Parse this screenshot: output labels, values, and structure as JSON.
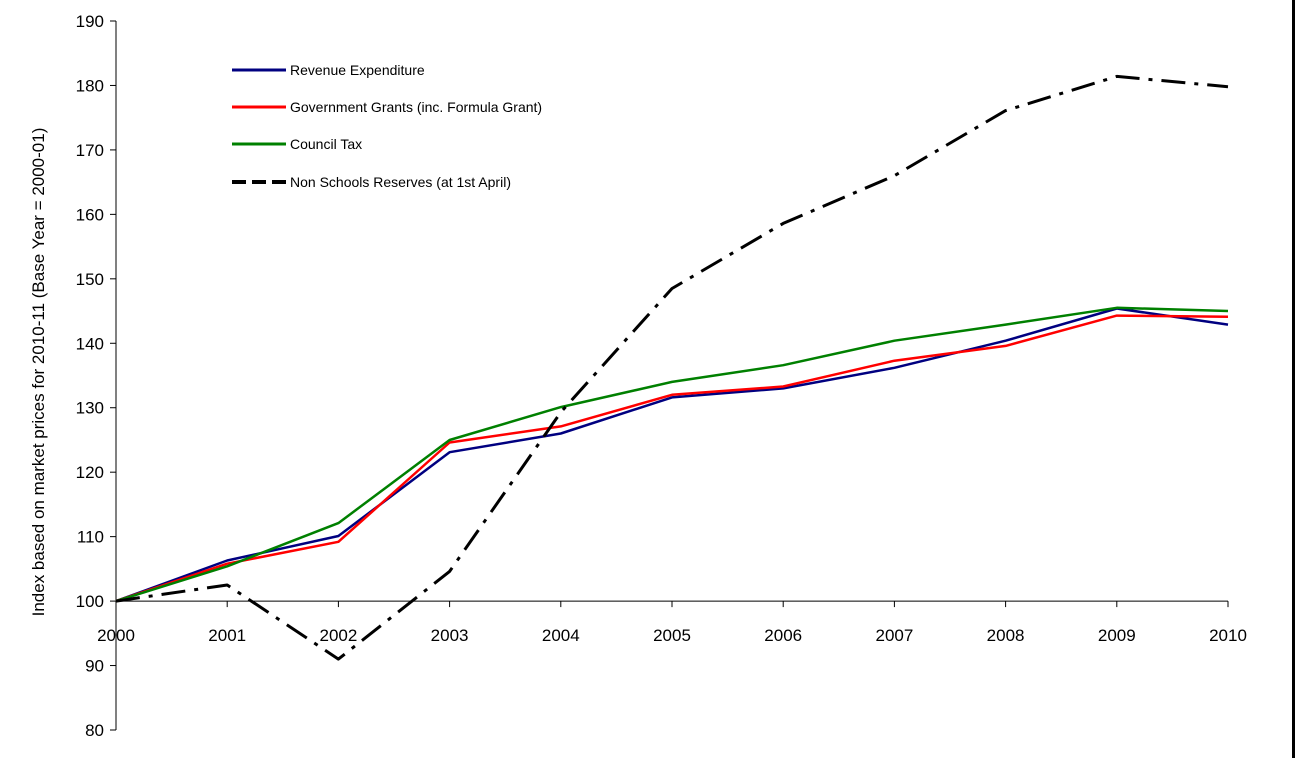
{
  "chart_data": {
    "type": "line",
    "title": "",
    "xlabel": "",
    "ylabel": "Index based on market prices for 2010-11 (Base Year = 2000-01)",
    "x": [
      2000,
      2001,
      2002,
      2003,
      2004,
      2005,
      2006,
      2007,
      2008,
      2009,
      2010
    ],
    "x_tick_labels": [
      "2000",
      "2001",
      "2002",
      "2003",
      "2004",
      "2005",
      "2006",
      "2007",
      "2008",
      "2009",
      "2010"
    ],
    "xlim": [
      2000,
      2010
    ],
    "ylim": [
      80,
      190
    ],
    "y_ticks": [
      80,
      90,
      100,
      110,
      120,
      130,
      140,
      150,
      160,
      170,
      180,
      190
    ],
    "y_tick_labels": [
      "80",
      "90",
      "100",
      "110",
      "120",
      "130",
      "140",
      "150",
      "160",
      "170",
      "180",
      "190"
    ],
    "x_axis_crosses_at": 100,
    "grid": false,
    "legend_position": "top-left",
    "series": [
      {
        "name": "Revenue Expenditure",
        "color": "#000080",
        "dash": "solid",
        "values": [
          100,
          106.3,
          110.1,
          123.1,
          126.0,
          131.6,
          133.0,
          136.2,
          140.4,
          145.4,
          142.9
        ]
      },
      {
        "name": "Government Grants (inc. Formula Grant)",
        "color": "#ff0000",
        "dash": "solid",
        "values": [
          100,
          105.8,
          109.2,
          124.6,
          127.1,
          132.0,
          133.3,
          137.3,
          139.6,
          144.3,
          144.1
        ]
      },
      {
        "name": "Council Tax",
        "color": "#008000",
        "dash": "solid",
        "values": [
          100,
          105.4,
          112.1,
          125.0,
          130.1,
          134.0,
          136.6,
          140.4,
          142.9,
          145.5,
          145.0
        ]
      },
      {
        "name": "Non Schools Reserves (at 1st April)",
        "color": "#000000",
        "dash": "dashdot",
        "values": [
          100,
          102.5,
          91.0,
          104.6,
          129.3,
          148.5,
          158.6,
          166.0,
          176.1,
          181.4,
          179.8
        ]
      }
    ]
  }
}
